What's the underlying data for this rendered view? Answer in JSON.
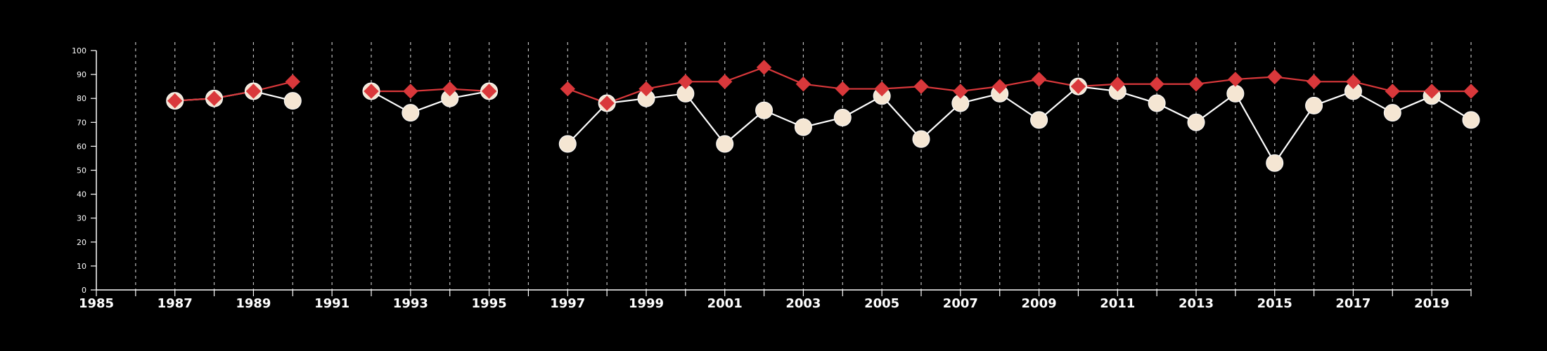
{
  "chart_data": {
    "type": "line",
    "title": "",
    "xlabel": "",
    "ylabel": "",
    "xlim": [
      1985,
      2020
    ],
    "ylim": [
      0,
      100
    ],
    "x_tick_labels": [
      "1985",
      "1987",
      "1989",
      "1991",
      "1993",
      "1995",
      "1997",
      "1999",
      "2001",
      "2003",
      "2005",
      "2007",
      "2009",
      "2011",
      "2013",
      "2015",
      "2017",
      "2019"
    ],
    "y_tick_labels": [
      "0",
      "10",
      "20",
      "30",
      "40",
      "50",
      "60",
      "70",
      "80",
      "90",
      "100"
    ],
    "vertical_gridlines": "dashed, every year",
    "legend": "none",
    "series": [
      {
        "color": "#f5e6d3",
        "marker": "circle",
        "line_color": "#ffffff",
        "points": [
          [
            1987,
            79
          ],
          [
            1988,
            80
          ],
          [
            1989,
            83
          ],
          [
            1990,
            79
          ],
          [
            1992,
            83
          ],
          [
            1993,
            74
          ],
          [
            1994,
            80
          ],
          [
            1995,
            83
          ],
          [
            1997,
            61
          ],
          [
            1998,
            78
          ],
          [
            1999,
            80
          ],
          [
            2000,
            82
          ],
          [
            2001,
            61
          ],
          [
            2002,
            75
          ],
          [
            2003,
            68
          ],
          [
            2004,
            72
          ],
          [
            2005,
            81
          ],
          [
            2006,
            63
          ],
          [
            2007,
            78
          ],
          [
            2008,
            82
          ],
          [
            2009,
            71
          ],
          [
            2010,
            85
          ],
          [
            2011,
            83
          ],
          [
            2012,
            78
          ],
          [
            2013,
            70
          ],
          [
            2014,
            82
          ],
          [
            2015,
            53
          ],
          [
            2016,
            77
          ],
          [
            2017,
            83
          ],
          [
            2018,
            74
          ],
          [
            2019,
            81
          ],
          [
            2020,
            71
          ]
        ]
      },
      {
        "color": "#d9383b",
        "marker": "diamond",
        "line_color": "#d9383b",
        "points": [
          [
            1987,
            79
          ],
          [
            1988,
            80
          ],
          [
            1989,
            83
          ],
          [
            1990,
            87
          ],
          [
            1992,
            83
          ],
          [
            1993,
            83
          ],
          [
            1994,
            84
          ],
          [
            1995,
            83
          ],
          [
            1997,
            84
          ],
          [
            1998,
            78
          ],
          [
            1999,
            84
          ],
          [
            2000,
            87
          ],
          [
            2001,
            87
          ],
          [
            2002,
            93
          ],
          [
            2003,
            86
          ],
          [
            2004,
            84
          ],
          [
            2005,
            84
          ],
          [
            2006,
            85
          ],
          [
            2007,
            83
          ],
          [
            2008,
            85
          ],
          [
            2009,
            88
          ],
          [
            2010,
            85
          ],
          [
            2011,
            86
          ],
          [
            2012,
            86
          ],
          [
            2013,
            86
          ],
          [
            2014,
            88
          ],
          [
            2015,
            89
          ],
          [
            2016,
            87
          ],
          [
            2017,
            87
          ],
          [
            2018,
            83
          ],
          [
            2019,
            83
          ],
          [
            2020,
            83
          ]
        ]
      }
    ]
  }
}
